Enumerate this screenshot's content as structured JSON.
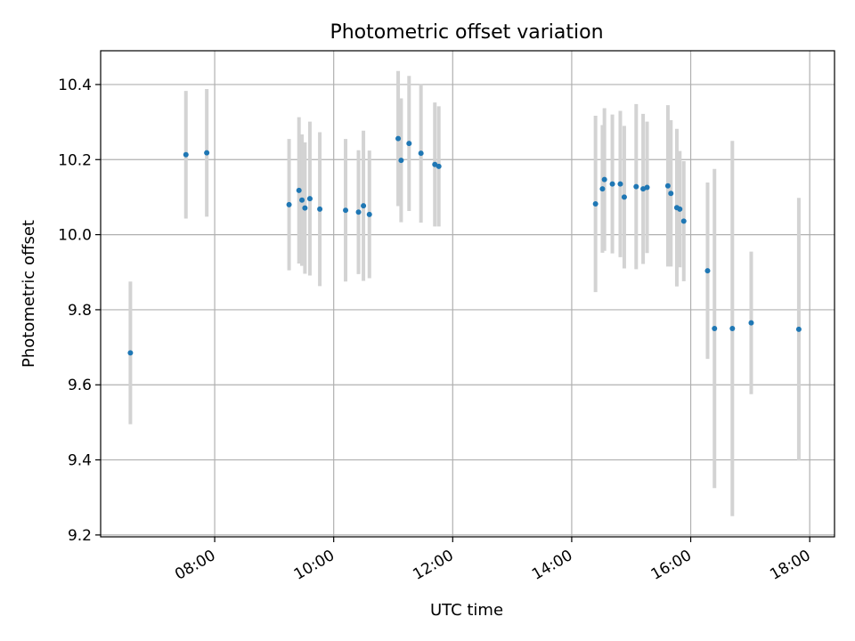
{
  "chart_data": {
    "type": "scatter",
    "title": "Photometric offset variation",
    "xlabel": "UTC time",
    "ylabel": "Photometric offset",
    "xlim": [
      "06:05",
      "18:25"
    ],
    "ylim": [
      9.195,
      10.49
    ],
    "grid": true,
    "x_ticks": [
      "08:00",
      "10:00",
      "12:00",
      "14:00",
      "16:00",
      "18:00"
    ],
    "y_ticks": [
      9.2,
      9.4,
      9.6,
      9.8,
      10.0,
      10.2,
      10.4
    ],
    "y_tick_labels": [
      "9.2",
      "9.4",
      "9.6",
      "9.8",
      "10.0",
      "10.2",
      "10.4"
    ],
    "point_color": "#1f77b4",
    "errorbar_color": "#d3d3d3",
    "points": [
      {
        "t": "06:35",
        "y": 9.685,
        "err": 0.19
      },
      {
        "t": "07:31",
        "y": 10.213,
        "err": 0.17
      },
      {
        "t": "07:52",
        "y": 10.218,
        "err": 0.17
      },
      {
        "t": "09:15",
        "y": 10.08,
        "err": 0.175
      },
      {
        "t": "09:25",
        "y": 10.118,
        "err": 0.195
      },
      {
        "t": "09:28",
        "y": 10.092,
        "err": 0.175
      },
      {
        "t": "09:31",
        "y": 10.071,
        "err": 0.175
      },
      {
        "t": "09:36",
        "y": 10.096,
        "err": 0.205
      },
      {
        "t": "09:46",
        "y": 10.068,
        "err": 0.205
      },
      {
        "t": "10:12",
        "y": 10.065,
        "err": 0.19
      },
      {
        "t": "10:25",
        "y": 10.06,
        "err": 0.165
      },
      {
        "t": "10:30",
        "y": 10.077,
        "err": 0.2
      },
      {
        "t": "10:36",
        "y": 10.054,
        "err": 0.17
      },
      {
        "t": "11:05",
        "y": 10.256,
        "err": 0.18
      },
      {
        "t": "11:08",
        "y": 10.198,
        "err": 0.165
      },
      {
        "t": "11:16",
        "y": 10.243,
        "err": 0.18
      },
      {
        "t": "11:28",
        "y": 10.217,
        "err": 0.185
      },
      {
        "t": "11:42",
        "y": 10.187,
        "err": 0.165
      },
      {
        "t": "11:46",
        "y": 10.182,
        "err": 0.16
      },
      {
        "t": "14:24",
        "y": 10.082,
        "err": 0.235
      },
      {
        "t": "14:31",
        "y": 10.122,
        "err": 0.17
      },
      {
        "t": "14:33",
        "y": 10.147,
        "err": 0.19
      },
      {
        "t": "14:41",
        "y": 10.135,
        "err": 0.185
      },
      {
        "t": "14:49",
        "y": 10.135,
        "err": 0.195
      },
      {
        "t": "14:53",
        "y": 10.1,
        "err": 0.19
      },
      {
        "t": "15:05",
        "y": 10.128,
        "err": 0.22
      },
      {
        "t": "15:12",
        "y": 10.122,
        "err": 0.2
      },
      {
        "t": "15:16",
        "y": 10.126,
        "err": 0.175
      },
      {
        "t": "15:37",
        "y": 10.13,
        "err": 0.215
      },
      {
        "t": "15:40",
        "y": 10.11,
        "err": 0.195
      },
      {
        "t": "15:46",
        "y": 10.072,
        "err": 0.21
      },
      {
        "t": "15:49",
        "y": 10.068,
        "err": 0.155
      },
      {
        "t": "15:53",
        "y": 10.036,
        "err": 0.16
      },
      {
        "t": "16:17",
        "y": 9.904,
        "err": 0.235
      },
      {
        "t": "16:24",
        "y": 9.75,
        "err": 0.425
      },
      {
        "t": "16:42",
        "y": 9.75,
        "err": 0.5
      },
      {
        "t": "17:01",
        "y": 9.765,
        "err": 0.19
      },
      {
        "t": "17:49",
        "y": 9.748,
        "err": 0.35
      }
    ]
  }
}
